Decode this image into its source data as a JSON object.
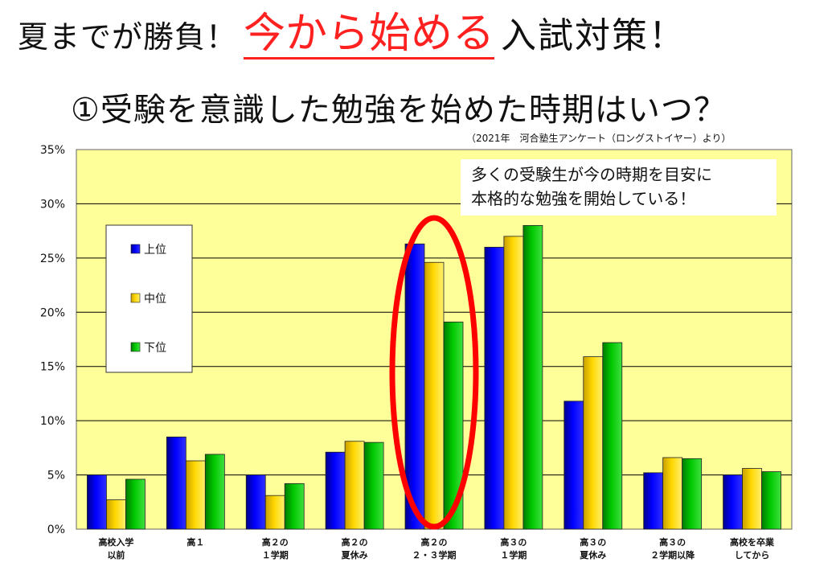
{
  "headline": {
    "prefix": "夏までが勝負！",
    "highlight": "今から始める",
    "suffix": "入試対策！"
  },
  "subtitle": "①受験を意識した勉強を始めた時期はいつ？",
  "source": "（2021年　河合塾生アンケート（ロングストイヤー）より）",
  "colors": {
    "plot_bg": "#ffff99",
    "upper": "#0000ff",
    "middle": "#ffd700",
    "lower": "#00c800",
    "highlight_ring": "#ff0000"
  },
  "chart_data": {
    "type": "bar",
    "title": "①受験を意識した勉強を始めた時期はいつ？",
    "xlabel": "",
    "ylabel": "",
    "ylim": [
      0,
      35
    ],
    "yticks": [
      "0%",
      "5%",
      "10%",
      "15%",
      "20%",
      "25%",
      "30%",
      "35%"
    ],
    "grid": true,
    "legend_position": "left",
    "categories": [
      [
        "高校入学",
        "以前"
      ],
      [
        "高１"
      ],
      [
        "高２の",
        "１学期"
      ],
      [
        "高２の",
        "夏休み"
      ],
      [
        "高２の",
        "２・３学期"
      ],
      [
        "高３の",
        "１学期"
      ],
      [
        "高３の",
        "夏休み"
      ],
      [
        "高３の",
        "２学期以降"
      ],
      [
        "高校を卒業",
        "してから"
      ]
    ],
    "series": [
      {
        "name": "上位",
        "values": [
          5.0,
          8.5,
          5.0,
          7.1,
          26.3,
          26.0,
          11.8,
          5.2,
          5.0
        ]
      },
      {
        "name": "中位",
        "values": [
          2.7,
          6.3,
          3.1,
          8.1,
          24.6,
          27.0,
          15.9,
          6.6,
          5.6
        ]
      },
      {
        "name": "下位",
        "values": [
          4.6,
          6.9,
          4.2,
          8.0,
          19.1,
          28.0,
          17.2,
          6.5,
          5.3
        ]
      }
    ],
    "annotation": [
      "多くの受験生が今の時期を目安に",
      "本格的な勉強を開始している！"
    ],
    "highlighted_category_index": 4
  }
}
